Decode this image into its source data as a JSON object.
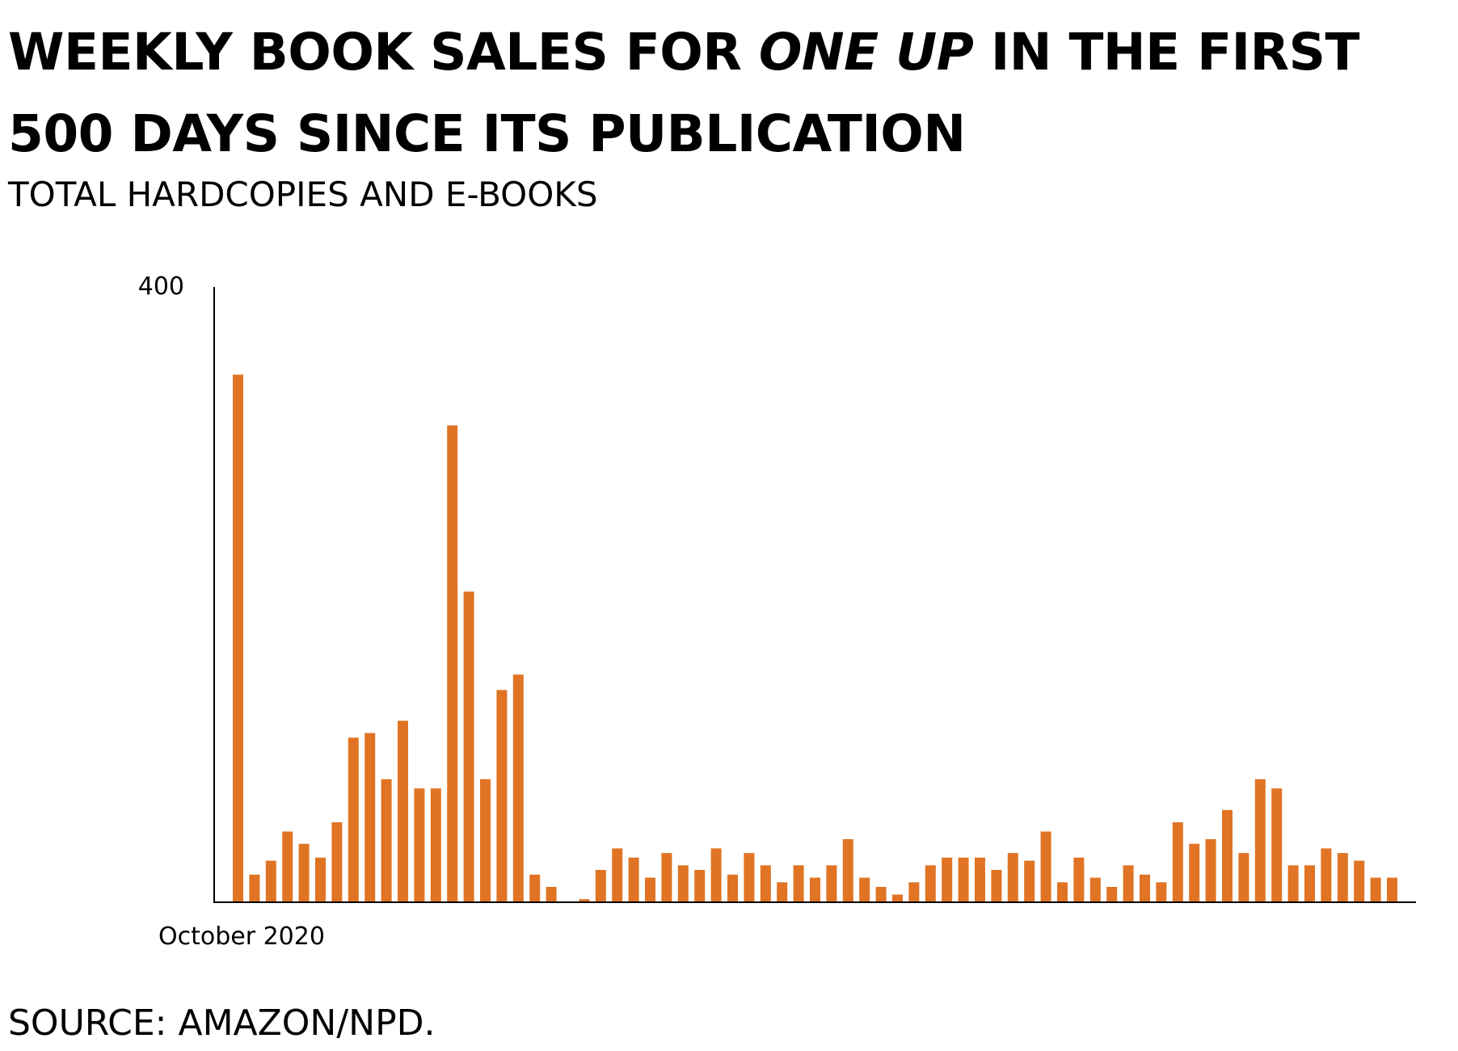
{
  "header": {
    "title_before": "WEEKLY BOOK SALES FOR ",
    "title_em": "ONE UP",
    "title_after": " IN THE FIRST 500 DAYS SINCE ITS PUBLICATION",
    "subtitle": "TOTAL HARDCOPIES AND E-BOOKS"
  },
  "footer": {
    "source": "SOURCE: AMAZON/NPD."
  },
  "colors": {
    "bar": "#E07424",
    "axis": "#000000"
  },
  "chart_data": {
    "type": "bar",
    "title": "WEEKLY BOOK SALES FOR ONE UP IN THE FIRST 500 DAYS SINCE ITS PUBLICATION",
    "subtitle": "TOTAL HARDCOPIES AND E-BOOKS",
    "xlabel": "",
    "ylabel": "",
    "ylim": [
      0,
      400
    ],
    "y_tick_labels": [
      "400"
    ],
    "x_tick_labels": [
      {
        "label": "October 2020",
        "index": 0
      }
    ],
    "grid": false,
    "legend": "none",
    "values": [
      343,
      18,
      27,
      46,
      38,
      29,
      52,
      107,
      110,
      80,
      118,
      74,
      74,
      310,
      202,
      80,
      138,
      148,
      18,
      10,
      0,
      2,
      21,
      35,
      29,
      16,
      32,
      24,
      21,
      35,
      18,
      32,
      24,
      13,
      24,
      16,
      24,
      41,
      16,
      10,
      5,
      13,
      24,
      29,
      29,
      29,
      21,
      32,
      27,
      46,
      13,
      29,
      16,
      10,
      24,
      18,
      13,
      52,
      38,
      41,
      60,
      32,
      80,
      74,
      24,
      24,
      35,
      32,
      27,
      16,
      16
    ]
  }
}
